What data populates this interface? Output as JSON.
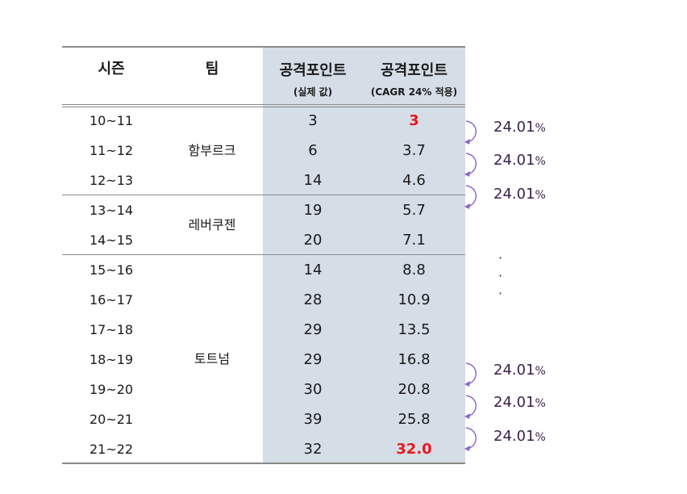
{
  "headers": {
    "season": "시즌",
    "team": "팀",
    "actual": "공격포인트",
    "actual_sub": "(실제 값)",
    "cagr": "공격포인트",
    "cagr_sub": "(CAGR 24% 적용)"
  },
  "teams": [
    "함부르크",
    "레버쿠젠",
    "토트넘"
  ],
  "rows": [
    {
      "season": "10~11",
      "actual": "3",
      "cagr": "3",
      "highlight": true
    },
    {
      "season": "11~12",
      "actual": "6",
      "cagr": "3.7"
    },
    {
      "season": "12~13",
      "actual": "14",
      "cagr": "4.6"
    },
    {
      "season": "13~14",
      "actual": "19",
      "cagr": "5.7"
    },
    {
      "season": "14~15",
      "actual": "20",
      "cagr": "7.1"
    },
    {
      "season": "15~16",
      "actual": "14",
      "cagr": "8.8"
    },
    {
      "season": "16~17",
      "actual": "28",
      "cagr": "10.9"
    },
    {
      "season": "17~18",
      "actual": "29",
      "cagr": "13.5"
    },
    {
      "season": "18~19",
      "actual": "29",
      "cagr": "16.8"
    },
    {
      "season": "19~20",
      "actual": "30",
      "cagr": "20.8"
    },
    {
      "season": "20~21",
      "actual": "39",
      "cagr": "25.8"
    },
    {
      "season": "21~22",
      "actual": "32",
      "cagr": "32.0",
      "highlight": true
    }
  ],
  "growth": {
    "value": "24.01",
    "unit": "%",
    "ellipsis": "·"
  },
  "colors": {
    "shade": "#d5dde7",
    "highlight": "#e8181e",
    "arrow": "#8a62c9",
    "rate_text": "#3a1f4a"
  }
}
